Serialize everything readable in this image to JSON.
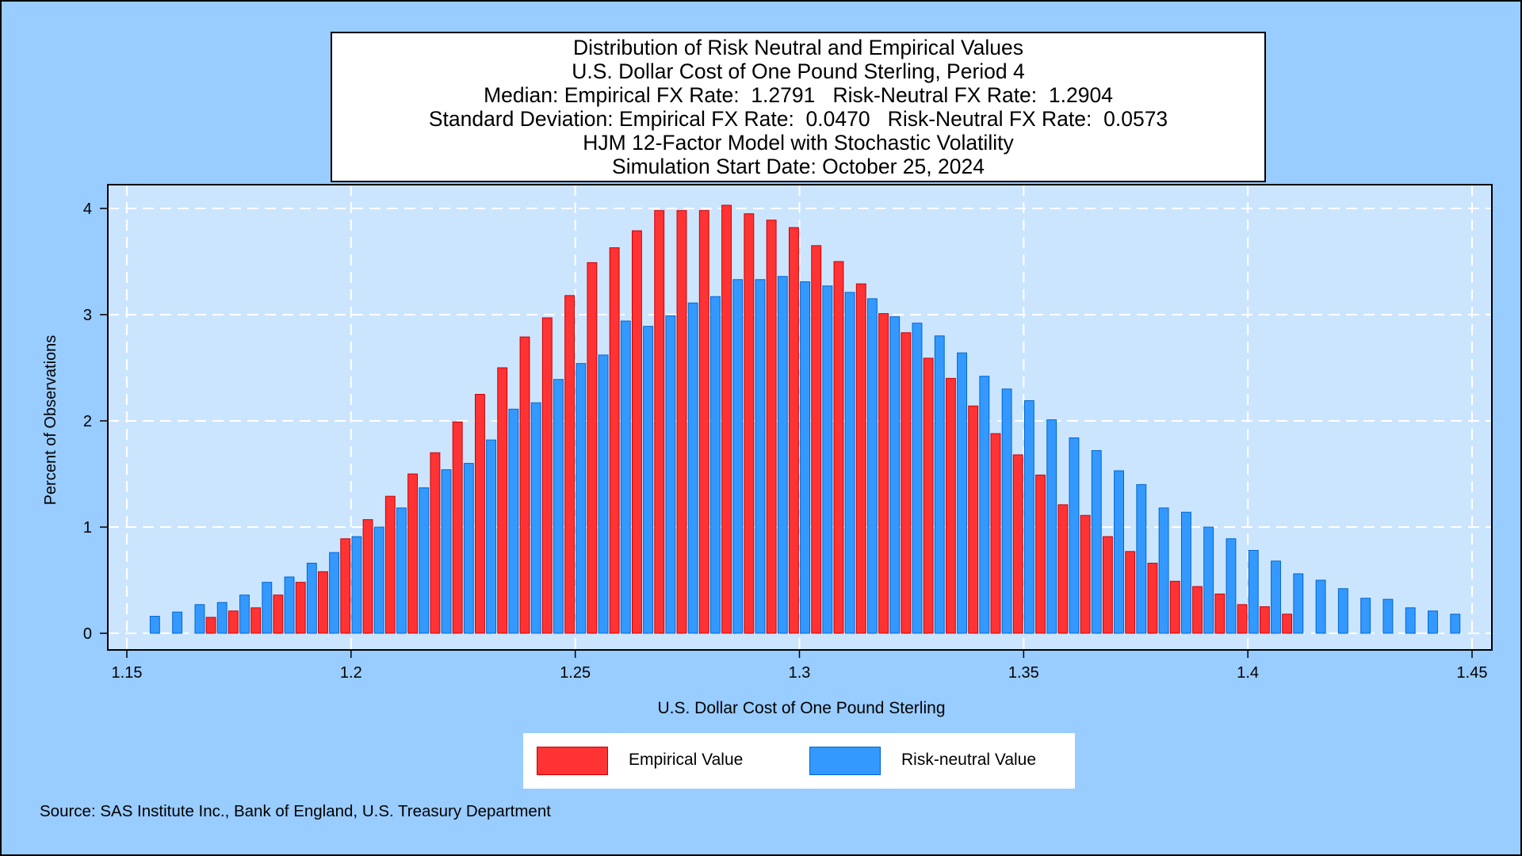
{
  "chart_data": {
    "type": "bar",
    "title_lines": [
      "Distribution of Risk Neutral and Empirical Values",
      "U.S. Dollar Cost of One Pound Sterling, Period 4",
      "Median: Empirical FX Rate:  1.2791   Risk-Neutral FX Rate:  1.2904",
      "Standard Deviation: Empirical FX Rate:  0.0470   Risk-Neutral FX Rate:  0.0573",
      "HJM 12-Factor Model with Stochastic Volatility",
      "Simulation Start Date: October 25, 2024"
    ],
    "xlabel": "U.S. Dollar Cost of One Pound Sterling",
    "ylabel": "Percent of Observations",
    "xlim": [
      1.15,
      1.45
    ],
    "ylim": [
      0,
      4.2
    ],
    "xticks": [
      1.15,
      1.2,
      1.25,
      1.3,
      1.35,
      1.4,
      1.45
    ],
    "xtick_labels": [
      "1.15",
      "1.2",
      "1.25",
      "1.3",
      "1.35",
      "1.4",
      "1.45"
    ],
    "yticks": [
      0,
      1,
      2,
      3,
      4
    ],
    "ytick_labels": [
      "0",
      "1",
      "2",
      "3",
      "4"
    ],
    "grid": true,
    "legend_position": "bottom-center",
    "bin_start": 1.1575,
    "bin_width": 0.005,
    "series": [
      {
        "name": "Empirical Value",
        "color": "#FF3333",
        "border": "#CC0000",
        "values": [
          0,
          0,
          0.15,
          0.21,
          0.24,
          0.36,
          0.48,
          0.58,
          0.89,
          1.07,
          1.29,
          1.5,
          1.7,
          1.99,
          2.25,
          2.5,
          2.79,
          2.97,
          3.18,
          3.49,
          3.63,
          3.79,
          3.98,
          3.98,
          3.98,
          4.03,
          3.95,
          3.89,
          3.82,
          3.65,
          3.5,
          3.29,
          3.01,
          2.83,
          2.59,
          2.4,
          2.14,
          1.88,
          1.68,
          1.49,
          1.21,
          1.11,
          0.91,
          0.77,
          0.66,
          0.49,
          0.44,
          0.37,
          0.27,
          0.25,
          0.18,
          0,
          0,
          0,
          0,
          0,
          0,
          0,
          0,
          0,
          0
        ]
      },
      {
        "name": "Risk-neutral Value",
        "color": "#3399FF",
        "border": "#0066CC",
        "values": [
          0.16,
          0.2,
          0.27,
          0.29,
          0.36,
          0.48,
          0.53,
          0.66,
          0.76,
          0.91,
          1.0,
          1.18,
          1.37,
          1.54,
          1.6,
          1.82,
          2.11,
          2.17,
          2.39,
          2.54,
          2.62,
          2.94,
          2.89,
          2.99,
          3.11,
          3.17,
          3.33,
          3.33,
          3.36,
          3.31,
          3.27,
          3.21,
          3.15,
          2.98,
          2.92,
          2.8,
          2.64,
          2.42,
          2.3,
          2.19,
          2.01,
          1.84,
          1.72,
          1.53,
          1.4,
          1.18,
          1.14,
          1.0,
          0.89,
          0.78,
          0.68,
          0.56,
          0.5,
          0.42,
          0.33,
          0.32,
          0.24,
          0.21,
          0.18,
          0,
          0
        ]
      }
    ]
  },
  "source_note": "Source: SAS Institute Inc., Bank of England, U.S. Treasury Department"
}
